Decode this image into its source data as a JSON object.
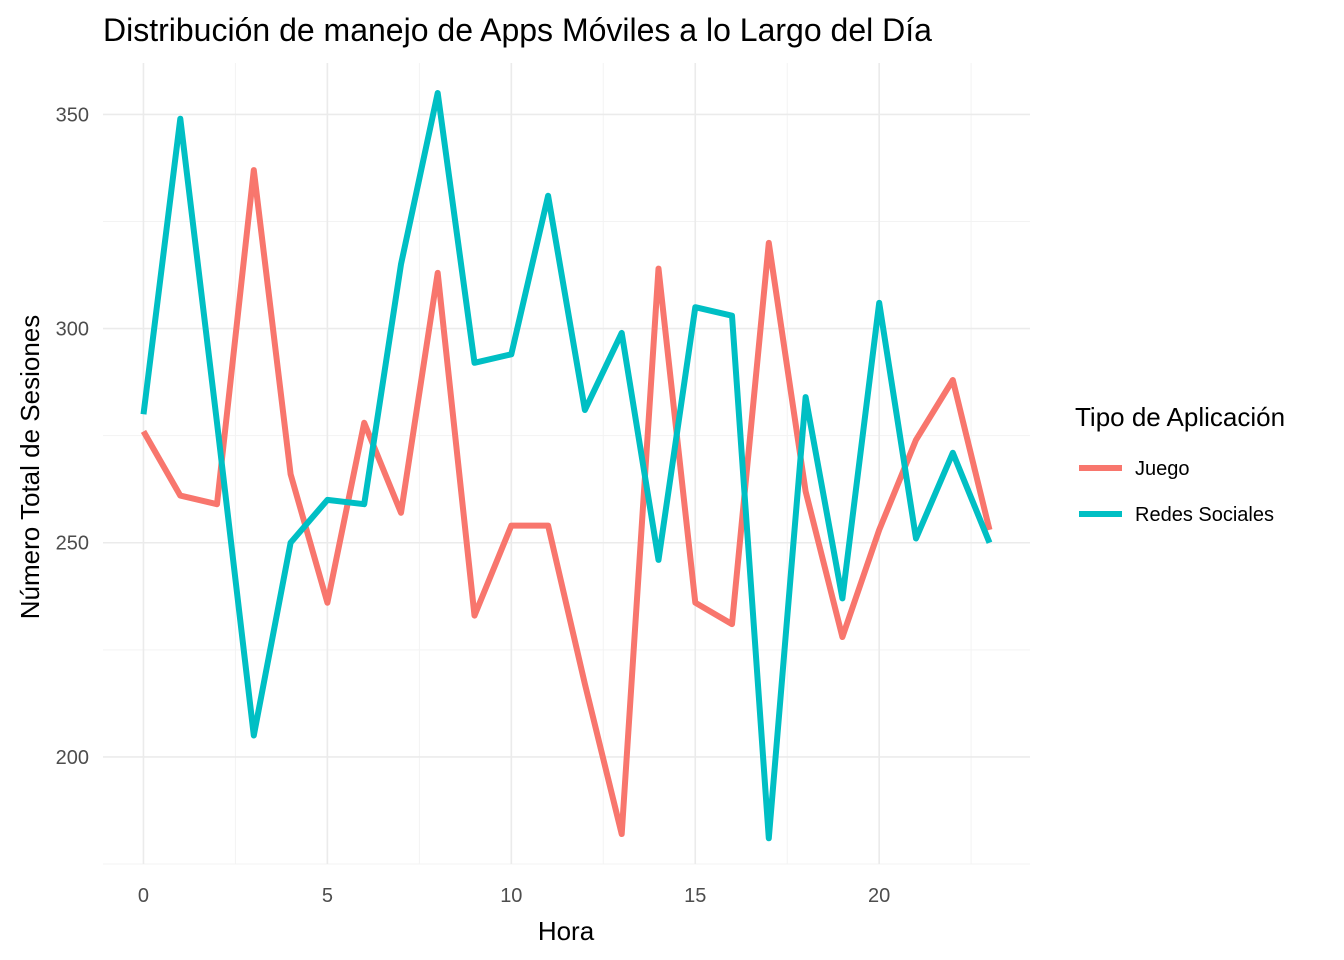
{
  "chart_data": {
    "type": "line",
    "title": "Distribución de manejo de Apps Móviles a lo Largo del Día",
    "xlabel": "Hora",
    "ylabel": "Número Total de Sesiones",
    "xlim": [
      -1.1,
      24.1
    ],
    "ylim": [
      175,
      362
    ],
    "x_ticks": [
      0,
      5,
      10,
      15,
      20
    ],
    "x_tick_labels": [
      "0",
      "5",
      "10",
      "15",
      "20"
    ],
    "y_ticks": [
      200,
      250,
      300,
      350
    ],
    "y_tick_labels": [
      "200",
      "250",
      "300",
      "350"
    ],
    "grid": true,
    "legend_title": "Tipo de Aplicación",
    "legend_position": "right",
    "x": [
      0,
      1,
      2,
      3,
      4,
      5,
      6,
      7,
      8,
      9,
      10,
      11,
      12,
      13,
      14,
      15,
      16,
      17,
      18,
      19,
      20,
      21,
      22,
      23
    ],
    "series": [
      {
        "name": "Juego",
        "color": "#F8766D",
        "values": [
          276,
          261,
          259,
          337,
          266,
          236,
          278,
          257,
          313,
          233,
          254,
          254,
          217,
          182,
          314,
          236,
          231,
          320,
          262,
          228,
          253,
          274,
          288,
          253
        ]
      },
      {
        "name": "Redes Sociales",
        "color": "#00BFC4",
        "values": [
          280,
          349,
          278,
          205,
          250,
          260,
          259,
          315,
          355,
          292,
          294,
          331,
          281,
          299,
          246,
          305,
          303,
          181,
          284,
          237,
          306,
          251,
          271,
          250
        ]
      }
    ]
  }
}
